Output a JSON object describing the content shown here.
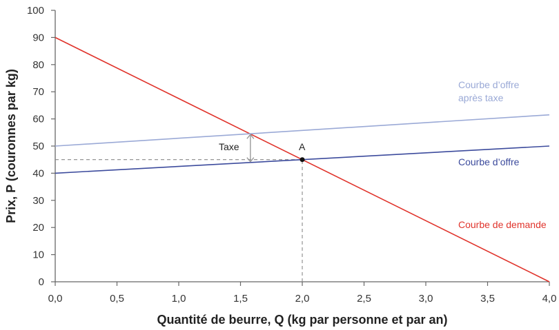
{
  "chart_data": {
    "type": "line",
    "title": "",
    "xlabel": "Quantité de beurre, Q (kg par personne et par an)",
    "ylabel": "Prix, P (couronnes par kg)",
    "xlim": [
      0,
      4
    ],
    "ylim": [
      0,
      100
    ],
    "x_ticks": [
      "0,0",
      "0,5",
      "1,0",
      "1,5",
      "2,0",
      "2,5",
      "3,0",
      "3,5",
      "4,0"
    ],
    "y_ticks": [
      "0",
      "10",
      "20",
      "30",
      "40",
      "50",
      "60",
      "70",
      "80",
      "90",
      "100"
    ],
    "grid": false,
    "series": [
      {
        "name": "Courbe de demande",
        "color": "#e0332b",
        "x": [
          0,
          4
        ],
        "y": [
          90,
          0
        ]
      },
      {
        "name": "Courbe d’offre",
        "color": "#3b4a9c",
        "x": [
          0,
          4
        ],
        "y": [
          40,
          50
        ]
      },
      {
        "name": "Courbe d’offre après taxe",
        "color": "#9aa9d6",
        "x": [
          0,
          4
        ],
        "y": [
          50,
          61.5
        ]
      }
    ],
    "annotations": [
      {
        "text": "A",
        "type": "point",
        "x": 2.0,
        "y": 45
      },
      {
        "text": "Taxe",
        "type": "double-arrow",
        "x": 1.58,
        "y_from": 44,
        "y_to": 54.5
      },
      {
        "type": "dashed-guide",
        "from": [
          0,
          45
        ],
        "to": [
          2.0,
          45
        ]
      },
      {
        "type": "dashed-guide",
        "from": [
          2.0,
          0
        ],
        "to": [
          2.0,
          45
        ]
      }
    ],
    "labels": {
      "demand": "Courbe de demande",
      "supply": "Courbe d’offre",
      "supply_tax_line1": "Courbe d’offre",
      "supply_tax_line2": "après taxe",
      "point_a": "A",
      "tax": "Taxe"
    }
  }
}
